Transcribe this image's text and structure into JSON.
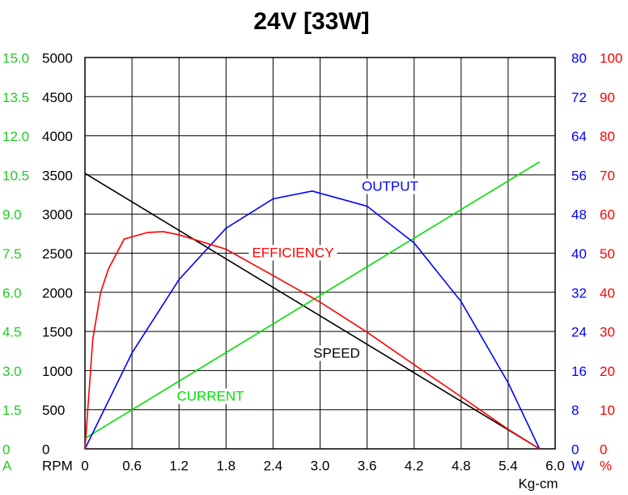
{
  "chart_data": {
    "type": "line",
    "title": "24V [33W]",
    "x_label": "Kg-cm",
    "xlim": [
      0,
      6
    ],
    "xticks": [
      0,
      0.6,
      1.2,
      1.8,
      2.4,
      {
        "value": 3,
        "label": "3.0"
      },
      3.6,
      4.2,
      4.8,
      5.4,
      {
        "value": 6,
        "label": "6.0"
      }
    ],
    "grid": true,
    "y_axes": [
      {
        "label": "A",
        "color": "#22cc22",
        "ylim": [
          0,
          15
        ],
        "ticks": [
          0,
          1.5,
          {
            "value": 3,
            "label": "3.0"
          },
          4.5,
          {
            "value": 6,
            "label": "6.0"
          },
          7.5,
          {
            "value": 9,
            "label": "9.0"
          },
          10.5,
          {
            "value": 12,
            "label": "12.0"
          },
          13.5,
          {
            "value": 15,
            "label": "15.0"
          }
        ]
      },
      {
        "label": "RPM",
        "color": "#000000",
        "ylim": [
          0,
          5000
        ],
        "ticks": [
          0,
          500,
          1000,
          1500,
          2000,
          2500,
          3000,
          3500,
          4000,
          4500,
          5000
        ]
      },
      {
        "label": "W",
        "color": "#0000ff",
        "ylim": [
          0,
          80
        ],
        "ticks": [
          0,
          8,
          16,
          24,
          32,
          40,
          48,
          56,
          64,
          72,
          80
        ]
      },
      {
        "label": "%",
        "color": "#ff0000",
        "ylim": [
          0,
          100
        ],
        "ticks": [
          0,
          10,
          20,
          30,
          40,
          50,
          60,
          70,
          80,
          90,
          100
        ]
      }
    ],
    "series": [
      {
        "name": "SPEED",
        "color": "#000000",
        "axis": 1,
        "x": [
          0,
          5.8
        ],
        "values": [
          3520,
          0
        ]
      },
      {
        "name": "CURRENT",
        "color": "#00e000",
        "axis": 0,
        "x": [
          0,
          5.8
        ],
        "values": [
          0.4,
          11.0
        ]
      },
      {
        "name": "OUTPUT",
        "color": "#0000ff",
        "axis": 2,
        "x": [
          0,
          0.6,
          1.2,
          1.8,
          2.4,
          2.9,
          3.6,
          4.2,
          4.8,
          5.4,
          5.8
        ],
        "values": [
          0,
          19.6,
          34.6,
          45.1,
          51.1,
          52.7,
          49.6,
          42.1,
          30.1,
          13.5,
          0
        ]
      },
      {
        "name": "EFFICIENCY",
        "color": "#ff0000",
        "axis": 3,
        "x": [
          0,
          0.1,
          0.2,
          0.3,
          0.5,
          0.8,
          1.0,
          1.2,
          1.8,
          2.4,
          3.0,
          3.6,
          4.2,
          4.8,
          5.4,
          5.8
        ],
        "values": [
          0,
          28,
          40,
          46,
          53.6,
          55.3,
          55.5,
          54.7,
          51,
          44.3,
          37.5,
          29.8,
          21.5,
          13.3,
          5,
          0
        ]
      }
    ]
  }
}
